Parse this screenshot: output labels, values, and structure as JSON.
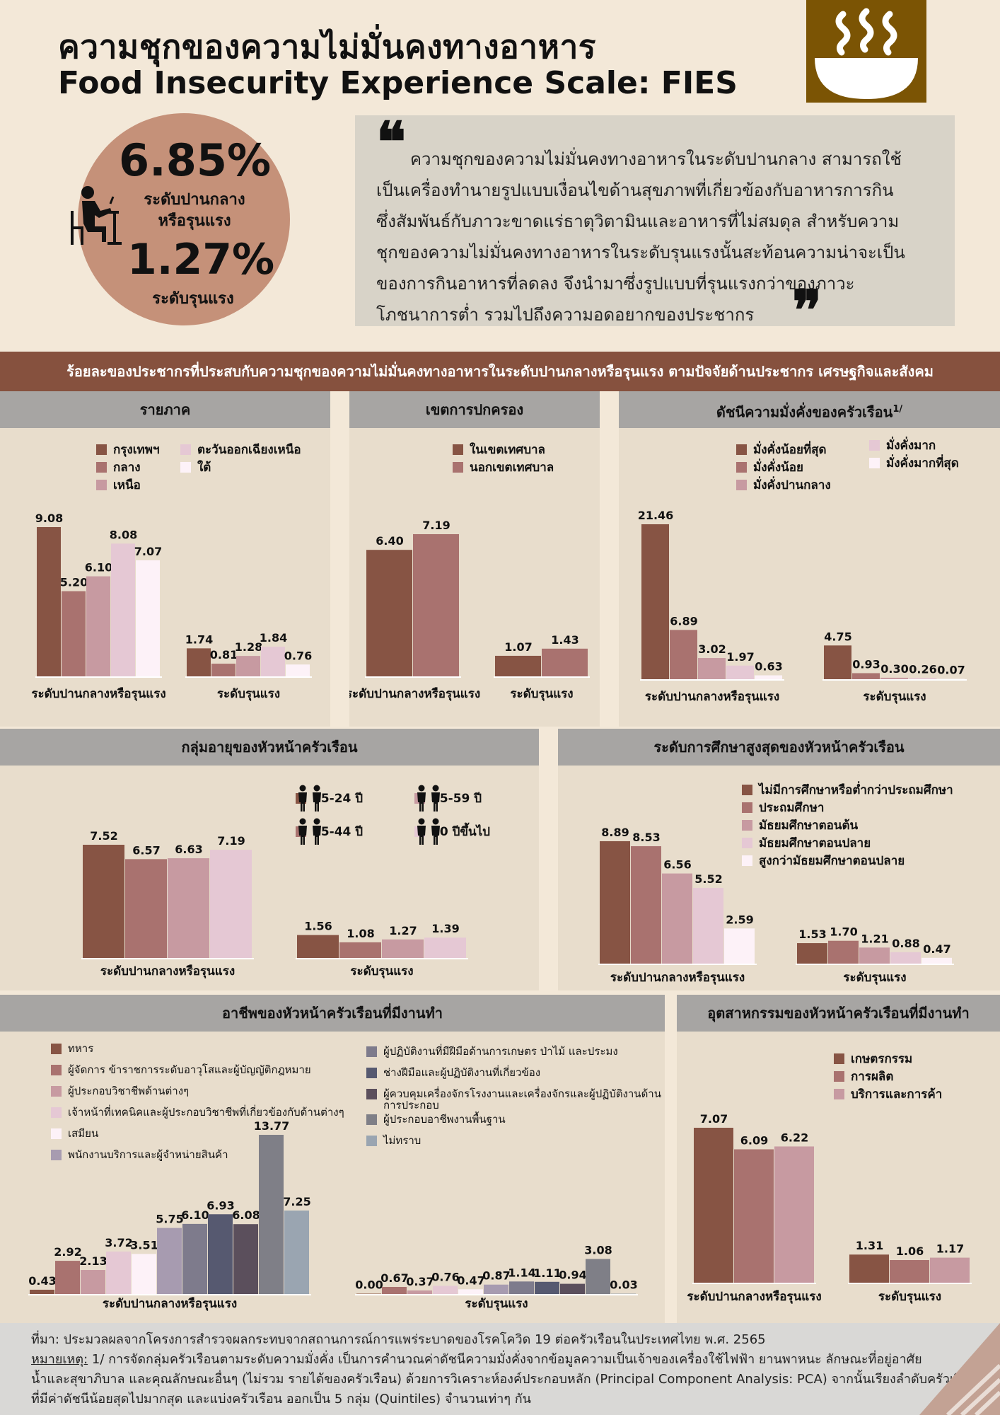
{
  "header": {
    "title_th": "ความชุกของความไม่มั่นคงทางอาหาร",
    "title_en": "Food Insecurity Experience Scale: FIES",
    "bowl_icon": "bowl-steam-icon",
    "person_icon": "person-eating-icon"
  },
  "highlight": {
    "moderate_value": "6.85%",
    "moderate_label_1": "ระดับปานกลาง",
    "moderate_label_2": "หรือรุนแรง",
    "severe_value": "1.27%",
    "severe_label": "ระดับรุนแรง"
  },
  "quote": {
    "open_mark": "❝",
    "close_mark": "❞",
    "lines": [
      "ความชุกของความไม่มั่นคงทางอาหารในระดับปานกลาง  สามารถใช้",
      "เป็นเครื่องทำนายรูปแบบเงื่อนไขด้านสุขภาพที่เกี่ยวข้องกับอาหารการกิน",
      "ซึ่งสัมพันธ์กับภาวะขาดแร่ธาตุวิตามินและอาหารที่ไม่สมดุล  สำหรับความ",
      "ชุกของความไม่มั่นคงทางอาหารในระดับรุนแรงนั้นสะท้อนความน่าจะเป็น",
      "ของการกินอาหารที่ลดลง   จึงนำมาซึ่งรูปแบบที่รุนแรงกว่าของภาวะ",
      "โภชนาการต่ำ  รวมไปถึงความอดอยากของประชากร"
    ]
  },
  "band_title": "ร้อยละของประชากรที่ประสบกับความชุกของความไม่มั่นคงทางอาหารในระดับปานกลางหรือรุนแรง ตามปัจจัยด้านประชากร เศรษฐกิจและสังคม",
  "group_labels": {
    "moderate": "ระดับปานกลางหรือรุนแรง",
    "severe": "ระดับรุนแรง"
  },
  "colors": {
    "c1": "#875444",
    "c2": "#a9726f",
    "c3": "#c79aa1",
    "c4": "#e5c8d4",
    "c5": "#fdf2f8",
    "o6": "#a79bb0",
    "o7": "#7e7b8c",
    "o8": "#565970",
    "o9": "#5b4f5c",
    "o10": "#7f7f87",
    "o11": "#9aa5b1"
  },
  "chart_data": [
    {
      "id": "region",
      "type": "bar",
      "title": "รายภาค",
      "categories": [
        "ระดับปานกลางหรือรุนแรง",
        "ระดับรุนแรง"
      ],
      "ylim": [
        0,
        10
      ],
      "series": [
        {
          "name": "กรุงเทพฯ",
          "values": [
            9.08,
            1.74
          ]
        },
        {
          "name": "กลาง",
          "values": [
            5.2,
            0.81
          ]
        },
        {
          "name": "เหนือ",
          "values": [
            6.1,
            1.28
          ]
        },
        {
          "name": "ตะวันออกเฉียงเหนือ",
          "values": [
            8.08,
            1.84
          ]
        },
        {
          "name": "ใต้",
          "values": [
            7.07,
            0.76
          ]
        }
      ]
    },
    {
      "id": "area",
      "type": "bar",
      "title": "เขตการปกครอง",
      "categories": [
        "ระดับปานกลางหรือรุนแรง",
        "ระดับรุนแรง"
      ],
      "ylim": [
        0,
        10
      ],
      "series": [
        {
          "name": "ในเขตเทศบาล",
          "values": [
            6.4,
            1.07
          ]
        },
        {
          "name": "นอกเขตเทศบาล",
          "values": [
            7.19,
            1.43
          ]
        }
      ]
    },
    {
      "id": "wealth",
      "type": "bar",
      "title": "ดัชนีความมั่งคั่งของครัวเรือน",
      "title_sup": "1/",
      "categories": [
        "ระดับปานกลางหรือรุนแรง",
        "ระดับรุนแรง"
      ],
      "ylim": [
        0,
        24
      ],
      "series": [
        {
          "name": "มั่งคั่งน้อยที่สุด",
          "values": [
            21.46,
            4.75
          ]
        },
        {
          "name": "มั่งคั่งน้อย",
          "values": [
            6.89,
            0.93
          ]
        },
        {
          "name": "มั่งคั่งปานกลาง",
          "values": [
            3.02,
            0.3
          ]
        },
        {
          "name": "มั่งคั่งมาก",
          "values": [
            1.97,
            0.26
          ]
        },
        {
          "name": "มั่งคั่งมากที่สุด",
          "values": [
            0.63,
            0.07
          ]
        }
      ]
    },
    {
      "id": "age",
      "type": "bar",
      "title": "กลุ่มอายุของหัวหน้าครัวเรือน",
      "categories": [
        "ระดับปานกลางหรือรุนแรง",
        "ระดับรุนแรง"
      ],
      "ylim": [
        0,
        9
      ],
      "series": [
        {
          "name": "15-24 ปี",
          "values": [
            7.52,
            1.56
          ]
        },
        {
          "name": "25-44 ปี",
          "values": [
            6.57,
            1.08
          ]
        },
        {
          "name": "45-59 ปี",
          "values": [
            6.63,
            1.27
          ]
        },
        {
          "name": "60 ปีขึ้นไป",
          "values": [
            7.19,
            1.39
          ]
        }
      ]
    },
    {
      "id": "education",
      "type": "bar",
      "title": "ระดับการศึกษาสูงสุดของหัวหน้าครัวเรือน",
      "categories": [
        "ระดับปานกลางหรือรุนแรง",
        "ระดับรุนแรง"
      ],
      "ylim": [
        0,
        10
      ],
      "series": [
        {
          "name": "ไม่มีการศึกษาหรือต่ำกว่าประถมศึกษา",
          "values": [
            8.89,
            1.53
          ]
        },
        {
          "name": "ประถมศึกษา",
          "values": [
            8.53,
            1.7
          ]
        },
        {
          "name": "มัธยมศึกษาตอนต้น",
          "values": [
            6.56,
            1.21
          ]
        },
        {
          "name": "มัธยมศึกษาตอนปลาย",
          "values": [
            5.52,
            0.88
          ]
        },
        {
          "name": "สูงกว่ามัธยมศึกษาตอนปลาย",
          "values": [
            2.59,
            0.47
          ]
        }
      ]
    },
    {
      "id": "occupation",
      "type": "bar",
      "title": "อาชีพของหัวหน้าครัวเรือนที่มีงานทำ",
      "categories": [
        "ระดับปานกลางหรือรุนแรง",
        "ระดับรุนแรง"
      ],
      "ylim": [
        0,
        14.5
      ],
      "series": [
        {
          "name": "ทหาร",
          "values": [
            0.43,
            0.0
          ]
        },
        {
          "name": "ผู้จัดการ ข้าราชการระดับอาวุโสและผู้บัญญัติกฎหมาย",
          "values": [
            2.92,
            0.67
          ]
        },
        {
          "name": "ผู้ประกอบวิชาชีพด้านต่างๆ",
          "values": [
            2.13,
            0.37
          ]
        },
        {
          "name": "เจ้าหน้าที่เทคนิคและผู้ประกอบวิชาชีพที่เกี่ยวข้องกับด้านต่างๆ",
          "values": [
            3.72,
            0.76
          ]
        },
        {
          "name": "เสมียน",
          "values": [
            3.51,
            0.47
          ]
        },
        {
          "name": "พนักงานบริการและผู้จำหน่ายสินค้า",
          "values": [
            5.75,
            0.87
          ]
        },
        {
          "name": "ผู้ปฏิบัติงานที่มีฝีมือด้านการเกษตร ป่าไม้ และประมง",
          "values": [
            6.1,
            1.14
          ]
        },
        {
          "name": "ช่างฝีมือและผู้ปฏิบัติงานที่เกี่ยวข้อง",
          "values": [
            6.93,
            1.11
          ]
        },
        {
          "name": "ผู้ควบคุมเครื่องจักรโรงงานและเครื่องจักรและผู้ปฏิบัติงานด้านการประกอบ",
          "values": [
            6.08,
            0.94
          ]
        },
        {
          "name": "ผู้ประกอบอาชีพงานพื้นฐาน",
          "values": [
            13.77,
            3.08
          ]
        },
        {
          "name": "ไม่ทราบ",
          "values": [
            7.25,
            0.03
          ]
        }
      ]
    },
    {
      "id": "industry",
      "type": "bar",
      "title": "อุตสาหกรรมของหัวหน้าครัวเรือนที่มีงานทำ",
      "categories": [
        "ระดับปานกลางหรือรุนแรง",
        "ระดับรุนแรง"
      ],
      "ylim": [
        0,
        8
      ],
      "series": [
        {
          "name": "เกษตรกรรม",
          "values": [
            7.07,
            1.31
          ]
        },
        {
          "name": "การผลิต",
          "values": [
            6.09,
            1.06
          ]
        },
        {
          "name": "บริการและการค้า",
          "values": [
            6.22,
            1.17
          ]
        }
      ]
    }
  ],
  "footer": {
    "source": "ที่มา: ประมวลผลจากโครงการสำรวจผลกระทบจากสถานการณ์การแพร่ระบาดของโรคโควิด 19 ต่อครัวเรือนในประเทศไทย พ.ศ. 2565",
    "note_label": "หมายเหตุ:",
    "note_line1": " 1/ การจัดกลุ่มครัวเรือนตามระดับความมั่งคั่ง เป็นการคำนวณค่าดัชนีความมั่งคั่งจากข้อมูลความเป็นเจ้าของเครื่องใช้ไฟฟ้า ยานพาหนะ ลักษณะที่อยู่อาศัย",
    "note_line2": "น้ำและสุขาภิบาล และคุณลักษณะอื่นๆ (ไม่รวม รายได้ของครัวเรือน) ด้วยการวิเคราะห์องค์ประกอบหลัก (Principal Component Analysis: PCA) จากนั้นเรียงลำดับครัวเรือน",
    "note_line3": "ที่มีค่าดัชนีน้อยสุดไปมากสุด และแบ่งครัวเรือน ออกเป็น 5 กลุ่ม (Quintiles) จำนวนเท่าๆ กัน"
  }
}
